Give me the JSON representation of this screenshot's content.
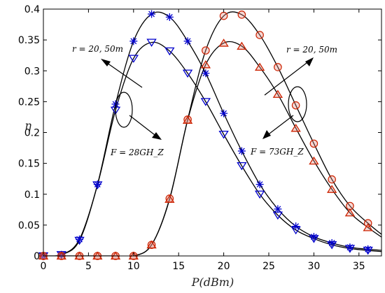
{
  "chart_data": {
    "type": "line",
    "xlabel": "P(dBm)",
    "ylabel": "η",
    "xlim": [
      0,
      37.5
    ],
    "ylim": [
      0,
      0.4
    ],
    "xticks": [
      "0",
      "5",
      "10",
      "15",
      "20",
      "25",
      "30",
      "35"
    ],
    "yticks": [
      "0",
      "0.05",
      "0.1",
      "0.15",
      "0.2",
      "0.25",
      "0.3",
      "0.35",
      "0.4"
    ],
    "grid": false,
    "series": [
      {
        "color": "#0000cc",
        "marker": "star",
        "x": [
          0,
          2,
          4,
          6,
          8,
          10,
          12,
          14,
          16,
          18,
          20,
          22,
          24,
          26,
          28,
          30,
          32,
          34,
          36
        ],
        "values": [
          0,
          0.002,
          0.027,
          0.116,
          0.246,
          0.348,
          0.392,
          0.387,
          0.348,
          0.296,
          0.231,
          0.17,
          0.116,
          0.076,
          0.048,
          0.031,
          0.021,
          0.014,
          0.011
        ]
      },
      {
        "color": "#0000cc",
        "marker": "triangle-down",
        "x": [
          0,
          2,
          4,
          6,
          8,
          10,
          12,
          14,
          16,
          18,
          20,
          22,
          24,
          26,
          28,
          30,
          32,
          34,
          36
        ],
        "values": [
          0,
          0.002,
          0.025,
          0.115,
          0.236,
          0.32,
          0.346,
          0.332,
          0.296,
          0.25,
          0.197,
          0.146,
          0.1,
          0.066,
          0.042,
          0.028,
          0.018,
          0.012,
          0.009
        ]
      },
      {
        "color": "#cc2200",
        "marker": "circle",
        "x": [
          0,
          2,
          4,
          6,
          8,
          10,
          12,
          14,
          16,
          18,
          20,
          22,
          24,
          26,
          28,
          30,
          32,
          34,
          36
        ],
        "values": [
          0,
          0,
          0,
          0,
          0,
          0,
          0.018,
          0.093,
          0.221,
          0.333,
          0.389,
          0.391,
          0.358,
          0.306,
          0.244,
          0.182,
          0.124,
          0.081,
          0.053
        ]
      },
      {
        "color": "#cc2200",
        "marker": "triangle-up",
        "x": [
          0,
          2,
          4,
          6,
          8,
          10,
          12,
          14,
          16,
          18,
          20,
          22,
          24,
          26,
          28,
          30,
          32,
          34,
          36
        ],
        "values": [
          0,
          0,
          0,
          0,
          0,
          0,
          0.018,
          0.092,
          0.22,
          0.31,
          0.345,
          0.34,
          0.306,
          0.262,
          0.207,
          0.154,
          0.108,
          0.07,
          0.046
        ]
      }
    ],
    "annotations": {
      "r_left": "r = 20, 50m",
      "r_right": "r = 20, 50m",
      "f_left": "F = 28GH_Z",
      "f_right": "F = 73GH_Z"
    }
  }
}
